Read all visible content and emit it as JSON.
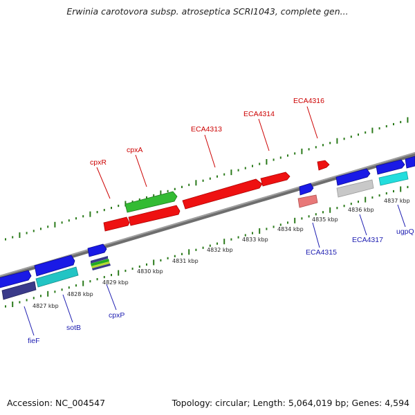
{
  "title": "Erwinia carotovora subsp. atroseptica SCRI1043, complete gen...",
  "footer": {
    "accession": "Accession: NC_004547",
    "summary": "Topology: circular; Length: 5,064,019 bp; Genes: 4,594"
  },
  "colors": {
    "backbone": "#888888",
    "ticks": "#2a7a1a",
    "label_top": "#cc0000",
    "label_bottom": "#1a1ab0",
    "red": "#ee1111",
    "green": "#33bb33",
    "blue": "#1a1ae6",
    "cyan": "#22dddd",
    "navy": "#3a3a8a",
    "teal": "#22c4c4",
    "grey": "#c8c8c8",
    "pink": "#e87878"
  },
  "kbp_labels": [
    "4827 kbp",
    "4828 kbp",
    "4829 kbp",
    "4830 kbp",
    "4831 kbp",
    "4832 kbp",
    "4833 kbp",
    "4834 kbp",
    "4835 kbp",
    "4836 kbp",
    "4837 kbp"
  ],
  "gene_labels_top": [
    "cpxR",
    "cpxA",
    "ECA4313",
    "ECA4314",
    "ECA4316"
  ],
  "gene_labels_bottom": [
    "fieF",
    "sotB",
    "cpxP",
    "ECA4315",
    "ECA4317",
    "ugpQ"
  ]
}
